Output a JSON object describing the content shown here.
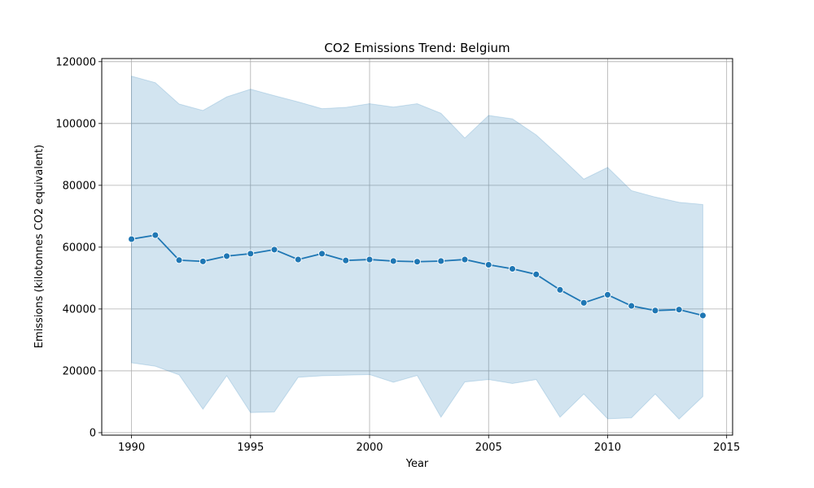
{
  "chart_data": {
    "type": "line",
    "title": "CO2 Emissions Trend: Belgium",
    "xlabel": "Year",
    "ylabel": "Emissions (kilotonnes CO2 equivalent)",
    "xlim": [
      1988.75,
      2015.25
    ],
    "ylim": [
      -800,
      121000
    ],
    "xticks": [
      1990,
      1995,
      2000,
      2005,
      2010,
      2015
    ],
    "yticks": [
      0,
      20000,
      40000,
      60000,
      80000,
      100000,
      120000
    ],
    "grid": true,
    "x": [
      1990,
      1991,
      1992,
      1993,
      1994,
      1995,
      1996,
      1997,
      1998,
      1999,
      2000,
      2001,
      2002,
      2003,
      2004,
      2005,
      2006,
      2007,
      2008,
      2009,
      2010,
      2011,
      2012,
      2013,
      2014
    ],
    "series": [
      {
        "values": [
          62600,
          63900,
          55800,
          55400,
          57100,
          57900,
          59200,
          56000,
          57900,
          55700,
          56000,
          55500,
          55300,
          55500,
          56000,
          54300,
          53000,
          51200,
          46200,
          42000,
          44600,
          41000,
          39500,
          39800,
          37900
        ],
        "band_upper": [
          115300,
          113200,
          106300,
          104200,
          108600,
          111100,
          109000,
          107000,
          104800,
          105200,
          106400,
          105300,
          106400,
          103300,
          95300,
          102600,
          101500,
          96300,
          89300,
          82000,
          85800,
          78300,
          76200,
          74500,
          73800
        ],
        "band_lower": [
          22600,
          21500,
          18700,
          7600,
          18400,
          6500,
          6700,
          17900,
          18400,
          18600,
          18800,
          16300,
          18500,
          5000,
          16400,
          17200,
          15900,
          17200,
          5000,
          12500,
          4500,
          4800,
          12500,
          4400,
          11700
        ]
      }
    ],
    "colors": {
      "line": "#1f77b4",
      "band": "#1f77b4",
      "grid": "#b0b0b0"
    }
  }
}
